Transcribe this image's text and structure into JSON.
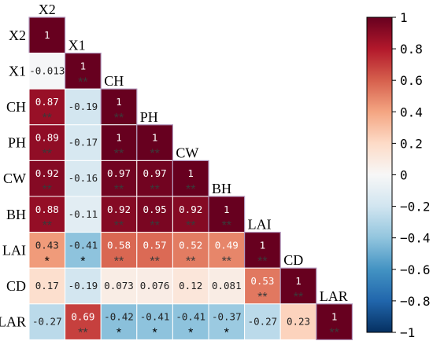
{
  "chart_data": {
    "type": "heatmap",
    "layout": "lower-triangle with labels on the diagonal",
    "variables": [
      "X2",
      "X1",
      "CH",
      "PH",
      "CW",
      "BH",
      "LAI",
      "CD",
      "LAR"
    ],
    "rows": [
      {
        "name": "X2",
        "values": [
          {
            "r": "1"
          }
        ]
      },
      {
        "name": "X1",
        "values": [
          {
            "r": "-0.013"
          },
          {
            "r": "1",
            "sig": "**"
          }
        ]
      },
      {
        "name": "CH",
        "values": [
          {
            "r": "0.87",
            "sig": "**"
          },
          {
            "r": "-0.19"
          },
          {
            "r": "1",
            "sig": "**"
          }
        ]
      },
      {
        "name": "PH",
        "values": [
          {
            "r": "0.89",
            "sig": "**"
          },
          {
            "r": "-0.17"
          },
          {
            "r": "1",
            "sig": "**"
          },
          {
            "r": "1",
            "sig": "**"
          }
        ]
      },
      {
        "name": "CW",
        "values": [
          {
            "r": "0.92",
            "sig": "**"
          },
          {
            "r": "-0.16"
          },
          {
            "r": "0.97",
            "sig": "**"
          },
          {
            "r": "0.97",
            "sig": "**"
          },
          {
            "r": "1",
            "sig": "**"
          }
        ]
      },
      {
        "name": "BH",
        "values": [
          {
            "r": "0.88",
            "sig": "**"
          },
          {
            "r": "-0.11"
          },
          {
            "r": "0.92",
            "sig": "**"
          },
          {
            "r": "0.95",
            "sig": "**"
          },
          {
            "r": "0.92",
            "sig": "**"
          },
          {
            "r": "1",
            "sig": "**"
          }
        ]
      },
      {
        "name": "LAI",
        "values": [
          {
            "r": "0.43",
            "sig": "*"
          },
          {
            "r": "-0.41",
            "sig": "*"
          },
          {
            "r": "0.58",
            "sig": "**"
          },
          {
            "r": "0.57",
            "sig": "**"
          },
          {
            "r": "0.52",
            "sig": "**"
          },
          {
            "r": "0.49",
            "sig": "**"
          },
          {
            "r": "1",
            "sig": "**"
          }
        ]
      },
      {
        "name": "CD",
        "values": [
          {
            "r": "0.17"
          },
          {
            "r": "-0.19"
          },
          {
            "r": "0.073"
          },
          {
            "r": "0.076"
          },
          {
            "r": "0.12"
          },
          {
            "r": "0.081"
          },
          {
            "r": "0.53",
            "sig": "**"
          },
          {
            "r": "1",
            "sig": "**"
          }
        ]
      },
      {
        "name": "LAR",
        "values": [
          {
            "r": "-0.27"
          },
          {
            "r": "0.69",
            "sig": "**"
          },
          {
            "r": "-0.42",
            "sig": "*"
          },
          {
            "r": "-0.41",
            "sig": "*"
          },
          {
            "r": "-0.41",
            "sig": "*"
          },
          {
            "r": "-0.37",
            "sig": "*"
          },
          {
            "r": "-0.27"
          },
          {
            "r": "0.23"
          },
          {
            "r": "1",
            "sig": "**"
          }
        ]
      }
    ],
    "colorbar": {
      "range": [
        -1,
        1
      ],
      "ticks": [
        "1",
        "0.8",
        "0.6",
        "0.4",
        "0.2",
        "0",
        "−0.2",
        "−0.4",
        "−0.6",
        "−0.8",
        "−1"
      ],
      "colormap": "RdBu_r",
      "stops": [
        "#053061",
        "#2166ac",
        "#4393c3",
        "#92c5de",
        "#d1e5f0",
        "#f7f7f7",
        "#fddbc7",
        "#f4a582",
        "#d6604d",
        "#b2182b",
        "#67001f"
      ]
    },
    "colors": {
      "one_star": "#000000",
      "two_star": "#3a3a3a",
      "cell_border": "#ffffff",
      "diag_frame": "#b39abf"
    }
  }
}
